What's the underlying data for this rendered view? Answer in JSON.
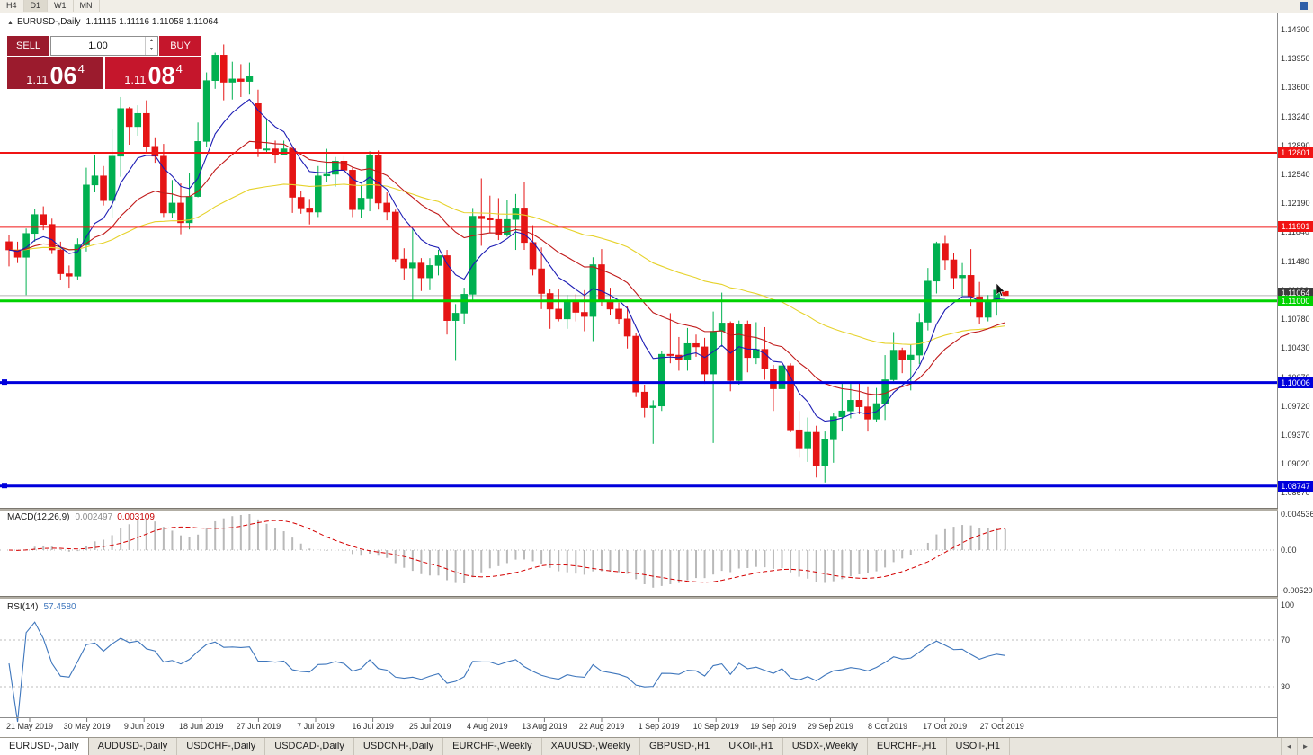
{
  "toolbar": {
    "timeframes": [
      "H4",
      "D1",
      "W1",
      "MN"
    ],
    "active_index": 1
  },
  "icons": {
    "collapse": "▲",
    "spin_up": "▲",
    "spin_down": "▼",
    "tab_left": "◄",
    "tab_right": "►"
  },
  "symbol_header": {
    "title": "EURUSD-,Daily",
    "ohlc": "1.11115 1.11116 1.11058 1.11064"
  },
  "trade_panel": {
    "sell_label": "SELL",
    "buy_label": "BUY",
    "volume": "1.00",
    "bid": {
      "small": "1.11",
      "big": "06",
      "sup": "4"
    },
    "ask": {
      "small": "1.11",
      "big": "08",
      "sup": "4"
    }
  },
  "colors": {
    "candle_up": "#00b050",
    "candle_down": "#e51414",
    "current_tag": "#3c3c3c",
    "macd_hist": "#b9b9b9",
    "macd_signal": "#d40000",
    "rsi_line": "#3e76bc",
    "sell": "#9b1b2d",
    "buy": "#c5162c"
  },
  "chart_data": {
    "type": "candlestick",
    "symbol": "EURUSD-",
    "timeframe": "Daily",
    "current_price": 1.11064,
    "y_axis_labels": [
      1.143,
      1.1395,
      1.136,
      1.1324,
      1.1289,
      1.1254,
      1.1219,
      1.1184,
      1.1148,
      1.1113,
      1.1078,
      1.1043,
      1.1007,
      1.0972,
      1.0937,
      1.0902,
      1.0867
    ],
    "x_labels": [
      "21 May 2019",
      "30 May 2019",
      "9 Jun 2019",
      "18 Jun 2019",
      "27 Jun 2019",
      "7 Jul 2019",
      "16 Jul 2019",
      "25 Jul 2019",
      "4 Aug 2019",
      "13 Aug 2019",
      "22 Aug 2019",
      "1 Sep 2019",
      "10 Sep 2019",
      "19 Sep 2019",
      "29 Sep 2019",
      "8 Oct 2019",
      "17 Oct 2019",
      "27 Oct 2019"
    ],
    "hlines": [
      {
        "price": 1.12801,
        "color": "#f01414",
        "width": 2
      },
      {
        "price": 1.11901,
        "color": "#f01414",
        "width": 2
      },
      {
        "price": 1.11,
        "color": "#00d200",
        "width": 3
      },
      {
        "price": 1.10006,
        "color": "#0000dc",
        "width": 3,
        "handles": true
      },
      {
        "price": 1.08747,
        "color": "#0000dc",
        "width": 3,
        "handles": true
      }
    ],
    "moving_averages": [
      {
        "period": 8,
        "method": "ema",
        "color": "#1c1cb4"
      },
      {
        "period": 21,
        "method": "ema",
        "color": "#c01a1a"
      },
      {
        "period": 55,
        "method": "ema",
        "color": "#e6d22a"
      }
    ],
    "candles": [
      [
        1.1172,
        1.118,
        1.1142,
        1.1162
      ],
      [
        1.1162,
        1.1172,
        1.1146,
        1.1153
      ],
      [
        1.1153,
        1.1188,
        1.1107,
        1.1182
      ],
      [
        1.1182,
        1.1212,
        1.1172,
        1.1205
      ],
      [
        1.1205,
        1.1215,
        1.1186,
        1.1193
      ],
      [
        1.1193,
        1.12,
        1.1157,
        1.1162
      ],
      [
        1.1162,
        1.1172,
        1.1125,
        1.1133
      ],
      [
        1.1133,
        1.1143,
        1.1116,
        1.113
      ],
      [
        1.113,
        1.1176,
        1.1126,
        1.1168
      ],
      [
        1.1168,
        1.1262,
        1.116,
        1.1241
      ],
      [
        1.1241,
        1.1278,
        1.1232,
        1.1252
      ],
      [
        1.1252,
        1.1264,
        1.1216,
        1.1222
      ],
      [
        1.1222,
        1.1309,
        1.1201,
        1.1276
      ],
      [
        1.1276,
        1.1348,
        1.1251,
        1.1334
      ],
      [
        1.1334,
        1.1336,
        1.129,
        1.1312
      ],
      [
        1.1312,
        1.1338,
        1.1301,
        1.1328
      ],
      [
        1.1328,
        1.1344,
        1.1281,
        1.1288
      ],
      [
        1.1288,
        1.1299,
        1.1268,
        1.1276
      ],
      [
        1.1276,
        1.1291,
        1.1202,
        1.1207
      ],
      [
        1.1207,
        1.1247,
        1.1201,
        1.1219
      ],
      [
        1.1219,
        1.1243,
        1.1181,
        1.1195
      ],
      [
        1.1195,
        1.1255,
        1.1187,
        1.1227
      ],
      [
        1.1227,
        1.1317,
        1.1226,
        1.1294
      ],
      [
        1.1294,
        1.1378,
        1.1287,
        1.1368
      ],
      [
        1.1368,
        1.1402,
        1.1358,
        1.1399
      ],
      [
        1.1399,
        1.1412,
        1.1344,
        1.1366
      ],
      [
        1.1366,
        1.1391,
        1.1345,
        1.137
      ],
      [
        1.137,
        1.1388,
        1.1348,
        1.1367
      ],
      [
        1.1367,
        1.139,
        1.1351,
        1.1373
      ],
      [
        1.134,
        1.1357,
        1.1275,
        1.1285
      ],
      [
        1.1285,
        1.1322,
        1.1281,
        1.1285
      ],
      [
        1.1285,
        1.1295,
        1.1268,
        1.1278
      ],
      [
        1.1278,
        1.1295,
        1.1277,
        1.1285
      ],
      [
        1.1285,
        1.1288,
        1.1207,
        1.1226
      ],
      [
        1.1226,
        1.1234,
        1.1206,
        1.1213
      ],
      [
        1.1213,
        1.1224,
        1.1193,
        1.1208
      ],
      [
        1.1208,
        1.1264,
        1.1202,
        1.1252
      ],
      [
        1.1252,
        1.1285,
        1.1245,
        1.1254
      ],
      [
        1.1254,
        1.1275,
        1.1239,
        1.127
      ],
      [
        1.127,
        1.1276,
        1.1254,
        1.1259
      ],
      [
        1.1259,
        1.1262,
        1.1202,
        1.1211
      ],
      [
        1.1211,
        1.1241,
        1.1201,
        1.1225
      ],
      [
        1.1225,
        1.1282,
        1.1209,
        1.1277
      ],
      [
        1.1277,
        1.1283,
        1.1211,
        1.1219
      ],
      [
        1.1219,
        1.1232,
        1.1198,
        1.1208
      ],
      [
        1.1208,
        1.1211,
        1.1147,
        1.1151
      ],
      [
        1.1151,
        1.1164,
        1.1126,
        1.114
      ],
      [
        1.114,
        1.1187,
        1.1101,
        1.1146
      ],
      [
        1.1146,
        1.1152,
        1.1112,
        1.1128
      ],
      [
        1.1128,
        1.1152,
        1.1113,
        1.1143
      ],
      [
        1.1143,
        1.1162,
        1.1131,
        1.1155
      ],
      [
        1.1155,
        1.1162,
        1.1059,
        1.1076
      ],
      [
        1.1076,
        1.1096,
        1.1027,
        1.1085
      ],
      [
        1.1085,
        1.1116,
        1.1072,
        1.1108
      ],
      [
        1.1108,
        1.1213,
        1.1101,
        1.1203
      ],
      [
        1.1203,
        1.1249,
        1.1167,
        1.12
      ],
      [
        1.12,
        1.1228,
        1.1183,
        1.1199
      ],
      [
        1.1199,
        1.1225,
        1.1174,
        1.1181
      ],
      [
        1.1181,
        1.1223,
        1.1178,
        1.1199
      ],
      [
        1.1199,
        1.123,
        1.1162,
        1.1213
      ],
      [
        1.1213,
        1.1244,
        1.1162,
        1.1171
      ],
      [
        1.1171,
        1.1192,
        1.1131,
        1.1139
      ],
      [
        1.1139,
        1.1165,
        1.109,
        1.1109
      ],
      [
        1.1109,
        1.1114,
        1.1066,
        1.109
      ],
      [
        1.109,
        1.1114,
        1.1075,
        1.1078
      ],
      [
        1.1078,
        1.1107,
        1.1066,
        1.1099
      ],
      [
        1.1099,
        1.1108,
        1.1075,
        1.1086
      ],
      [
        1.1086,
        1.1113,
        1.1063,
        1.1081
      ],
      [
        1.1081,
        1.1153,
        1.1051,
        1.1144
      ],
      [
        1.1144,
        1.1163,
        1.1094,
        1.1101
      ],
      [
        1.1101,
        1.1116,
        1.1083,
        1.109
      ],
      [
        1.109,
        1.1098,
        1.1072,
        1.1078
      ],
      [
        1.1078,
        1.1094,
        1.1042,
        1.1057
      ],
      [
        1.1057,
        1.1061,
        1.0983,
        1.0989
      ],
      [
        1.0989,
        1.0998,
        1.0958,
        1.097
      ],
      [
        1.097,
        1.0979,
        1.0926,
        1.0972
      ],
      [
        1.0972,
        1.1039,
        1.0966,
        1.1035
      ],
      [
        1.1035,
        1.1085,
        1.1024,
        1.1034
      ],
      [
        1.1034,
        1.1056,
        1.1015,
        1.1028
      ],
      [
        1.1028,
        1.1067,
        1.1015,
        1.1048
      ],
      [
        1.1048,
        1.1059,
        1.1032,
        1.1044
      ],
      [
        1.1044,
        1.1055,
        1.0999,
        1.1011
      ],
      [
        1.1011,
        1.1087,
        1.0927,
        1.1063
      ],
      [
        1.1063,
        1.111,
        1.1044,
        1.1073
      ],
      [
        1.1073,
        1.1075,
        1.099,
        1.1003
      ],
      [
        1.1003,
        1.1076,
        1.0998,
        1.1072
      ],
      [
        1.1072,
        1.1076,
        1.1013,
        1.1031
      ],
      [
        1.1031,
        1.1074,
        1.1023,
        1.1041
      ],
      [
        1.1041,
        1.1068,
        1.1004,
        1.1017
      ],
      [
        1.1017,
        1.1022,
        1.0966,
        1.0993
      ],
      [
        1.0993,
        1.1024,
        1.0981,
        1.1021
      ],
      [
        1.1021,
        1.1024,
        1.094,
        1.0943
      ],
      [
        1.0943,
        1.0966,
        1.0909,
        1.0921
      ],
      [
        1.0921,
        1.0958,
        1.0904,
        1.094
      ],
      [
        1.094,
        1.0948,
        1.0885,
        1.0899
      ],
      [
        1.0899,
        1.0941,
        1.0879,
        1.0932
      ],
      [
        1.0932,
        1.0964,
        1.0903,
        1.0959
      ],
      [
        1.0959,
        1.0999,
        1.0941,
        1.0966
      ],
      [
        1.0966,
        1.0999,
        1.0957,
        1.0979
      ],
      [
        1.0979,
        1.1,
        1.0962,
        1.0971
      ],
      [
        1.0971,
        1.0995,
        1.0941,
        1.0956
      ],
      [
        1.0956,
        1.0994,
        1.0953,
        1.0975
      ],
      [
        1.0975,
        1.1034,
        1.0955,
        1.1004
      ],
      [
        1.1004,
        1.1062,
        1.1002,
        1.104
      ],
      [
        1.104,
        1.1043,
        1.1012,
        1.1028
      ],
      [
        1.1028,
        1.1047,
        1.0991,
        1.1034
      ],
      [
        1.1034,
        1.1085,
        1.1023,
        1.1074
      ],
      [
        1.1074,
        1.114,
        1.1064,
        1.1124
      ],
      [
        1.1124,
        1.1172,
        1.1109,
        1.117
      ],
      [
        1.117,
        1.1179,
        1.1138,
        1.115
      ],
      [
        1.115,
        1.1158,
        1.1115,
        1.1128
      ],
      [
        1.1128,
        1.1146,
        1.1106,
        1.1131
      ],
      [
        1.1131,
        1.1163,
        1.1093,
        1.1105
      ],
      [
        1.1105,
        1.1123,
        1.1072,
        1.108
      ],
      [
        1.108,
        1.1107,
        1.1075,
        1.1099
      ],
      [
        1.1099,
        1.1118,
        1.1082,
        1.1113
      ],
      [
        1.11115,
        1.11116,
        1.11058,
        1.11064
      ]
    ],
    "indicators": [
      {
        "name": "MACD",
        "label": "MACD(12,26,9)",
        "value_main": "0.002497",
        "value_signal": "0.003109",
        "axis_labels": [
          "0.004536",
          "0.00",
          "-0.005205"
        ]
      },
      {
        "name": "RSI",
        "label": "RSI(14)",
        "value": "57.4580",
        "axis_labels": [
          "100",
          "70",
          "30"
        ]
      }
    ]
  },
  "tabs": {
    "active_index": 0,
    "items": [
      "EURUSD-,Daily",
      "AUDUSD-,Daily",
      "USDCHF-,Daily",
      "USDCAD-,Daily",
      "USDCNH-,Daily",
      "EURCHF-,Weekly",
      "XAUUSD-,Weekly",
      "GBPUSD-,H1",
      "UKOil-,H1",
      "USDX-,Weekly",
      "EURCHF-,H1",
      "USOil-,H1"
    ]
  }
}
